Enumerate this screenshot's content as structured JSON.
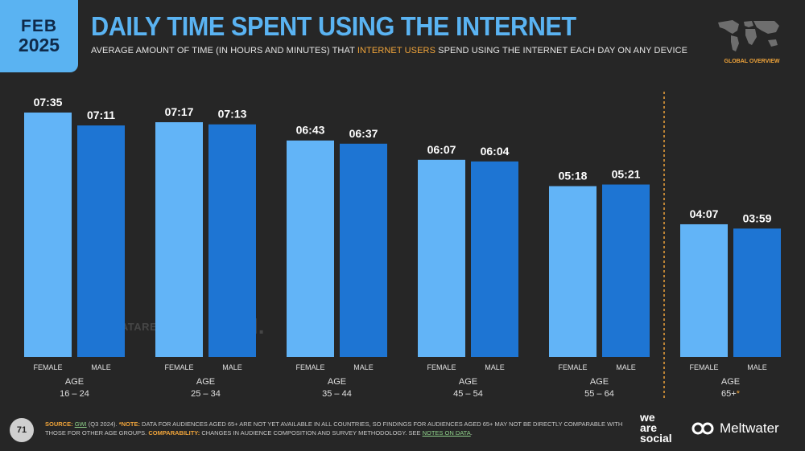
{
  "header": {
    "month": "FEB",
    "year": "2025",
    "title": "DAILY TIME SPENT USING THE INTERNET",
    "subtitle_pre": "AVERAGE AMOUNT OF TIME (IN HOURS AND MINUTES) THAT ",
    "subtitle_highlight": "INTERNET USERS",
    "subtitle_post": " SPEND USING THE INTERNET EACH DAY ON ANY DEVICE",
    "region_label": "GLOBAL OVERVIEW"
  },
  "colors": {
    "accent": "#5ab3f2",
    "female": "#62b4f7",
    "male": "#1e75d3",
    "highlight": "#f0a43a",
    "background": "#262626"
  },
  "chart_data": {
    "type": "bar",
    "value_unit": "hours:minutes",
    "categories": [
      "16 – 24",
      "25 – 34",
      "35 – 44",
      "45 – 54",
      "55 – 64",
      "65+"
    ],
    "group_prefix": "AGE",
    "series": [
      {
        "name": "FEMALE",
        "values": [
          "07:35",
          "07:17",
          "06:43",
          "06:07",
          "05:18",
          "04:07"
        ]
      },
      {
        "name": "MALE",
        "values": [
          "07:11",
          "07:13",
          "06:37",
          "06:04",
          "05:21",
          "03:59"
        ]
      }
    ],
    "asterisk_category": "65+",
    "separator_before": "65+"
  },
  "watermark": {
    "datareportal": "DATAREPORTAL",
    "gwi": "GWI."
  },
  "footer": {
    "page_number": "71",
    "source_label": "SOURCE:",
    "source_link": "GWI",
    "source_text": " (Q3 2024). ",
    "note_label": "*NOTE:",
    "note_text": " DATA FOR AUDIENCES AGED 65+ ARE NOT YET AVAILABLE IN ALL COUNTRIES, SO FINDINGS FOR AUDIENCES AGED 65+ MAY NOT BE DIRECTLY COMPARABLE WITH THOSE FOR OTHER AGE GROUPS. ",
    "comparability_label": "COMPARABILITY:",
    "comparability_text": " CHANGES IN AUDIENCE COMPOSITION AND SURVEY METHODOLOGY. SEE ",
    "notes_link": "NOTES ON DATA",
    "notes_end": ".",
    "brand_we": "we",
    "brand_are": "are",
    "brand_social": "social",
    "brand_meltwater": "Meltwater"
  }
}
